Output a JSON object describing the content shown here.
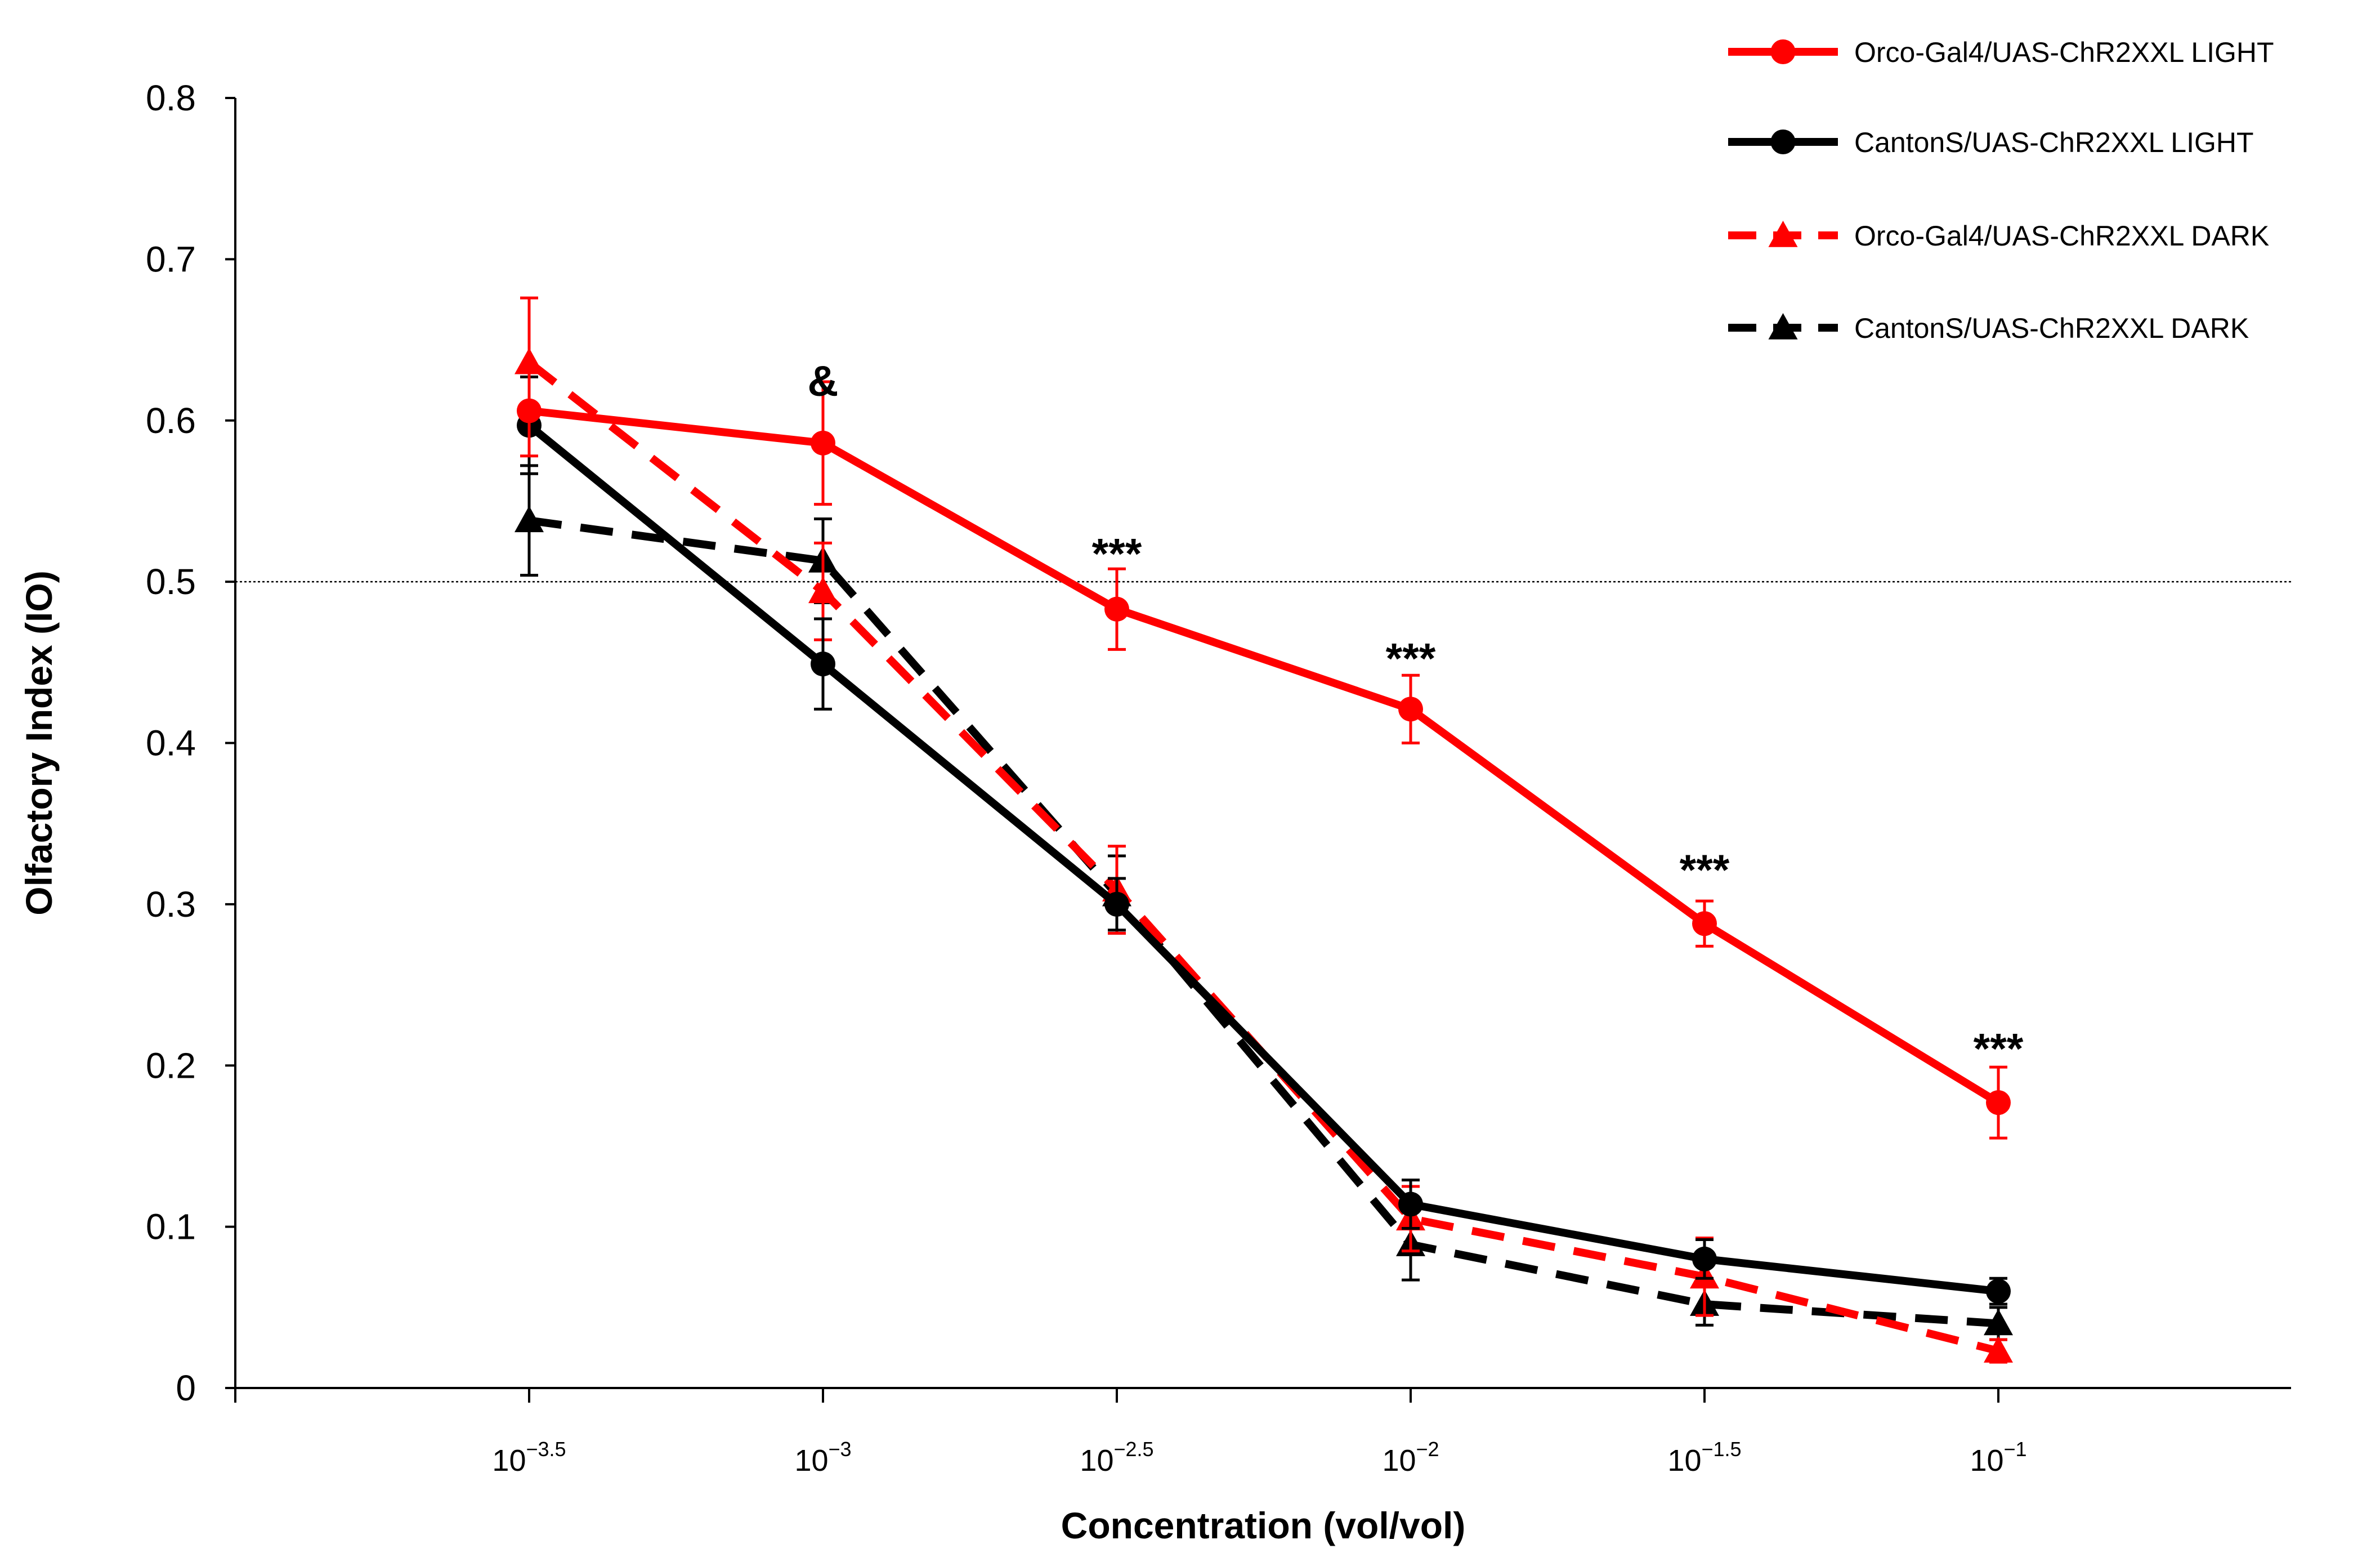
{
  "chart_data": {
    "type": "line",
    "title": "",
    "xlabel": "Concentration (vol/vol)",
    "ylabel": "Olfactory Index  (IO)",
    "ylim": [
      0,
      0.8
    ],
    "yticks": [
      "0",
      "0.1",
      "0.2",
      "0.3",
      "0.4",
      "0.5",
      "0.6",
      "0.7",
      "0.8"
    ],
    "categories": [
      {
        "base": "10",
        "exp": "−3.5"
      },
      {
        "base": "10",
        "exp": "−3"
      },
      {
        "base": "10",
        "exp": "−2.5"
      },
      {
        "base": "10",
        "exp": "−2"
      },
      {
        "base": "10",
        "exp": "−1.5"
      },
      {
        "base": "10",
        "exp": "−1"
      }
    ],
    "reference_line": 0.5,
    "series": [
      {
        "name": "Orco-Gal4/UAS-ChR2XXL LIGHT",
        "color": "#ff0000",
        "dashed": false,
        "marker": "circle",
        "values": [
          0.606,
          0.586,
          0.483,
          0.421,
          0.288,
          0.177
        ],
        "errors": [
          0.028,
          0.038,
          0.025,
          0.021,
          0.014,
          0.022
        ]
      },
      {
        "name": "CantonS/UAS-ChR2XXL LIGHT",
        "color": "#000000",
        "dashed": false,
        "marker": "circle",
        "values": [
          0.597,
          0.449,
          0.3,
          0.114,
          0.08,
          0.06
        ],
        "errors": [
          0.03,
          0.028,
          0.016,
          0.015,
          0.012,
          0.008
        ]
      },
      {
        "name": "Orco-Gal4/UAS-ChR2XXL DARK",
        "color": "#ff0000",
        "dashed": true,
        "marker": "triangle",
        "values": [
          0.636,
          0.494,
          0.309,
          0.105,
          0.069,
          0.023
        ],
        "errors": [
          0.04,
          0.03,
          0.027,
          0.02,
          0.024,
          0.007
        ]
      },
      {
        "name": "CantonS/UAS-ChR2XXL DARK",
        "color": "#000000",
        "dashed": true,
        "marker": "triangle",
        "values": [
          0.538,
          0.513,
          0.306,
          0.089,
          0.052,
          0.04
        ],
        "errors": [
          0.034,
          0.026,
          0.024,
          0.022,
          0.013,
          0.01
        ]
      }
    ],
    "annotations": [
      {
        "index": 1,
        "text": "&",
        "value": 0.625
      },
      {
        "index": 2,
        "text": "***",
        "value": 0.518
      },
      {
        "index": 3,
        "text": "***",
        "value": 0.453
      },
      {
        "index": 4,
        "text": "***",
        "value": 0.322
      },
      {
        "index": 5,
        "text": "***",
        "value": 0.211
      }
    ],
    "legend_position": "top-right"
  }
}
